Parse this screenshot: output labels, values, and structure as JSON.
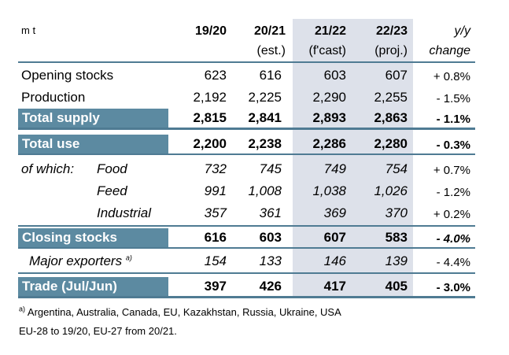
{
  "unit": "m t",
  "columns": [
    {
      "line1": "19/20",
      "line2": ""
    },
    {
      "line1": "20/21",
      "line2": "(est.)"
    },
    {
      "line1": "21/22",
      "line2": "(f'cast)"
    },
    {
      "line1": "22/23",
      "line2": "(proj.)"
    },
    {
      "line1": "y/y",
      "line2": "change"
    }
  ],
  "rows": {
    "opening_stocks": {
      "label": "Opening stocks",
      "v": [
        "623",
        "616",
        "603",
        "607"
      ],
      "change": "+ 0.8%"
    },
    "production": {
      "label": "Production",
      "v": [
        "2,192",
        "2,225",
        "2,290",
        "2,255"
      ],
      "change": "- 1.5%"
    },
    "total_supply": {
      "label": "Total supply",
      "v": [
        "2,815",
        "2,841",
        "2,893",
        "2,863"
      ],
      "change": "- 1.1%"
    },
    "total_use": {
      "label": "Total use",
      "v": [
        "2,200",
        "2,238",
        "2,286",
        "2,280"
      ],
      "change": "- 0.3%"
    },
    "food": {
      "prefix": "of which:",
      "label": "Food",
      "v": [
        "732",
        "745",
        "749",
        "754"
      ],
      "change": "+ 0.7%"
    },
    "feed": {
      "label": "Feed",
      "v": [
        "991",
        "1,008",
        "1,038",
        "1,026"
      ],
      "change": "- 1.2%"
    },
    "industrial": {
      "label": "Industrial",
      "v": [
        "357",
        "361",
        "369",
        "370"
      ],
      "change": "+ 0.2%"
    },
    "closing_stocks": {
      "label": "Closing stocks",
      "v": [
        "616",
        "603",
        "607",
        "583"
      ],
      "change": "- 4.0%"
    },
    "major_exporters": {
      "label": "Major exporters",
      "note_mark": "a)",
      "v": [
        "154",
        "133",
        "146",
        "139"
      ],
      "change": "- 4.4%"
    },
    "trade": {
      "label": "Trade (Jul/Jun)",
      "v": [
        "397",
        "426",
        "417",
        "405"
      ],
      "change": "- 3.0%"
    }
  },
  "footnotes": {
    "a_mark": "a)",
    "a_text": " Argentina, Australia, Canada, EU, Kazakhstan, Russia, Ukraine, USA",
    "eu_note": "EU-28 to 19/20, EU-27 from 20/21."
  },
  "colors": {
    "label_bar": "#5c8aa1",
    "rule": "#4f7b93",
    "shade": "#dde1ea"
  }
}
